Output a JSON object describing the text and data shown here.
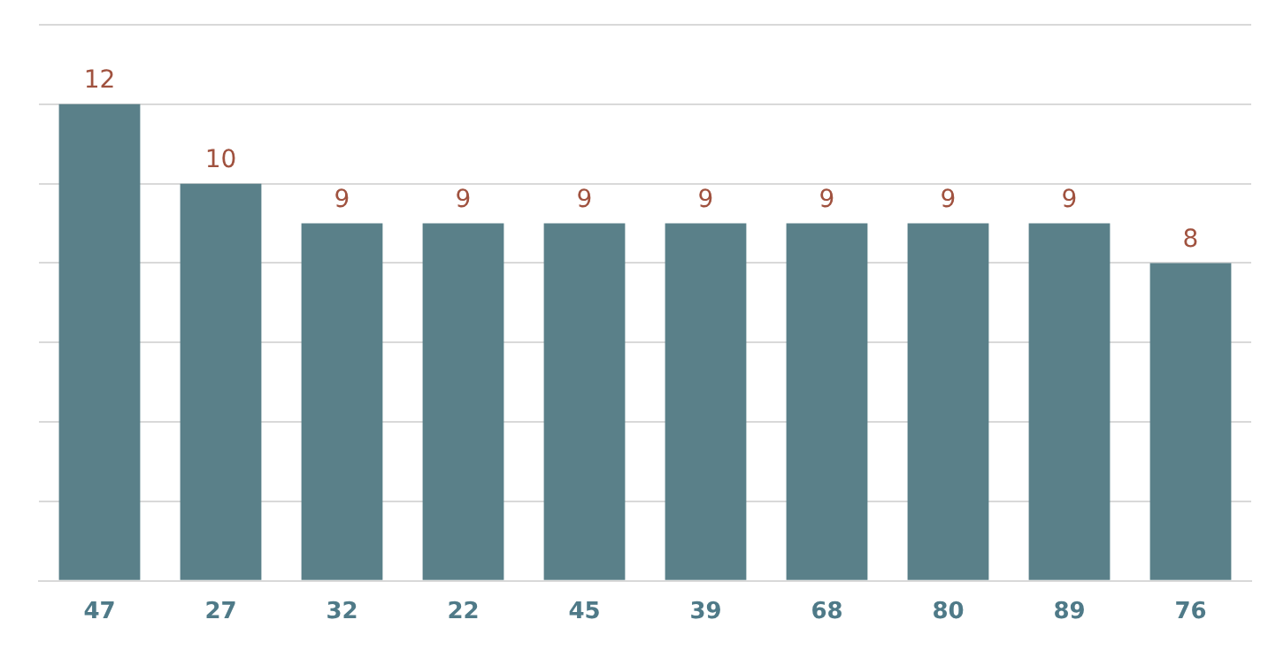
{
  "chart_data": {
    "type": "bar",
    "categories": [
      "47",
      "27",
      "32",
      "22",
      "45",
      "39",
      "68",
      "80",
      "89",
      "76"
    ],
    "values": [
      12,
      10,
      9,
      9,
      9,
      9,
      9,
      9,
      9,
      8
    ],
    "color": "#5a8089",
    "ylim": [
      0,
      14
    ],
    "yticks": [
      {
        "value": 0,
        "label": null
      },
      {
        "value": 2,
        "label": null
      },
      {
        "value": 4,
        "label": null
      },
      {
        "value": 6,
        "label": null
      },
      {
        "value": 8,
        "label": null
      },
      {
        "value": 10,
        "label": null
      },
      {
        "value": 12,
        "label": null
      },
      {
        "value": 14,
        "label": null
      }
    ],
    "grid": "y",
    "data_labels": true,
    "legend": false
  }
}
